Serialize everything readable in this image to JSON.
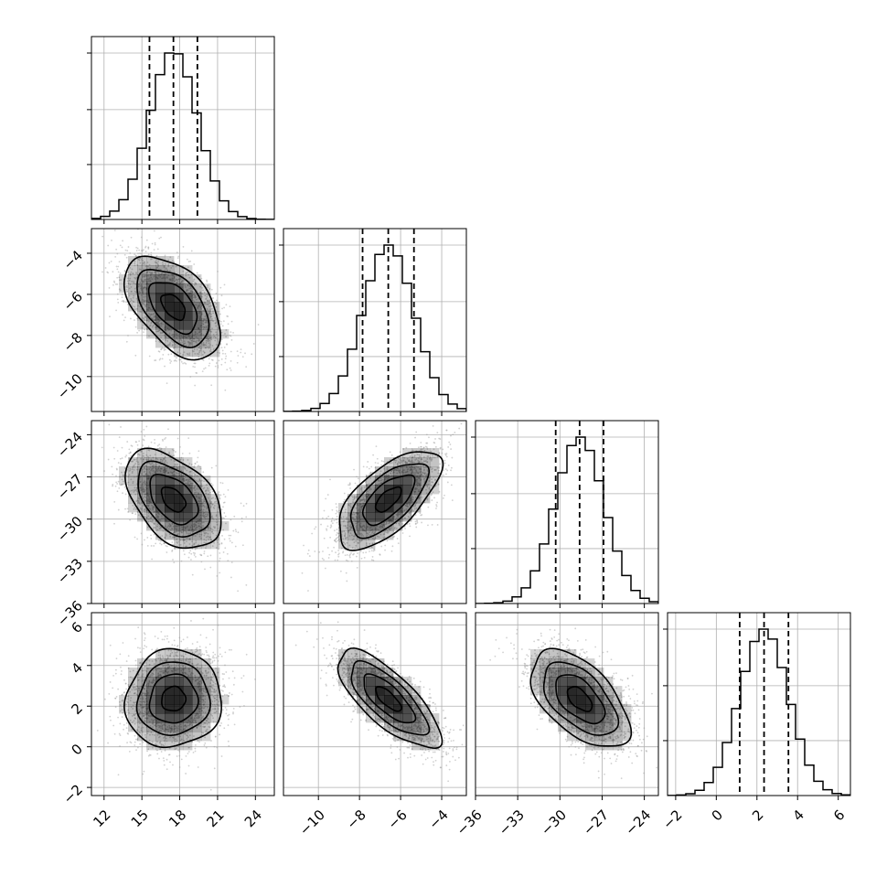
{
  "chart_data": {
    "type": "corner",
    "grid": true,
    "parameters": [
      {
        "range": [
          11,
          25.5
        ],
        "ticks": [
          12,
          15,
          18,
          21,
          24
        ],
        "mean": 17.5,
        "sigma": 1.9,
        "quantiles": [
          15.6,
          17.5,
          19.4
        ]
      },
      {
        "range": [
          -11.7,
          -2.8
        ],
        "ticks": [
          -10,
          -8,
          -6,
          -4
        ],
        "mean": -6.6,
        "sigma": 1.25,
        "quantiles": [
          -7.85,
          -6.6,
          -5.35
        ]
      },
      {
        "range": [
          -36,
          -23
        ],
        "ticks": [
          -36,
          -33,
          -30,
          -27,
          -24
        ],
        "mean": -28.6,
        "sigma": 1.75,
        "quantiles": [
          -30.3,
          -28.6,
          -26.9
        ]
      },
      {
        "range": [
          -2.4,
          6.6
        ],
        "ticks": [
          -2,
          0,
          2,
          4,
          6
        ],
        "mean": 2.35,
        "sigma": 1.2,
        "quantiles": [
          1.15,
          2.35,
          3.55
        ]
      }
    ],
    "correlations": [
      [
        1,
        -0.5,
        -0.45,
        0.05
      ],
      [
        -0.5,
        1,
        0.65,
        -0.75
      ],
      [
        -0.45,
        0.65,
        1,
        -0.55
      ],
      [
        0.05,
        -0.75,
        -0.55,
        1
      ]
    ],
    "histogram_bins": 20,
    "contour_levels": [
      "0.5 sigma",
      "1 sigma",
      "1.5 sigma",
      "2 sigma"
    ],
    "colors": {
      "line": "#000000",
      "points": "#9a9a9a",
      "grid": "#b0b0b0",
      "density": "#000000"
    }
  }
}
